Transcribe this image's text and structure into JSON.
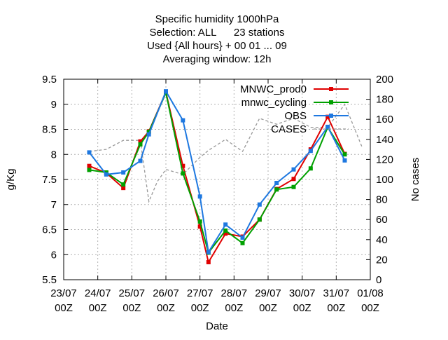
{
  "chart_data": {
    "type": "line",
    "title_lines": [
      "Specific humidity 1000hPa",
      "Selection: ALL      23 stations",
      "Used {All hours} + 00 01 ... 09",
      "Averaging window: 12h"
    ],
    "xlabel": "Date",
    "ylabel": "g/Kg",
    "y2label": "No cases",
    "x_ticks": [
      {
        "date": "2019-07-23 00:00",
        "line1": "23/07",
        "line2": "00Z"
      },
      {
        "date": "2019-07-24 00:00",
        "line1": "24/07",
        "line2": "00Z"
      },
      {
        "date": "2019-07-25 00:00",
        "line1": "25/07",
        "line2": "00Z"
      },
      {
        "date": "2019-07-26 00:00",
        "line1": "26/07",
        "line2": "00Z"
      },
      {
        "date": "2019-07-27 00:00",
        "line1": "27/07",
        "line2": "00Z"
      },
      {
        "date": "2019-07-28 00:00",
        "line1": "28/07",
        "line2": "00Z"
      },
      {
        "date": "2019-07-29 00:00",
        "line1": "29/07",
        "line2": "00Z"
      },
      {
        "date": "2019-07-30 00:00",
        "line1": "30/07",
        "line2": "00Z"
      },
      {
        "date": "2019-07-31 00:00",
        "line1": "31/07",
        "line2": "00Z"
      },
      {
        "date": "2019-08-01 00:00",
        "line1": "01/08",
        "line2": "00Z"
      }
    ],
    "xlim": [
      "2019-07-23 00:00",
      "2019-08-01 00:00"
    ],
    "ylim": [
      5.5,
      9.5
    ],
    "y_ticks": [
      "5.5",
      "6",
      "6.5",
      "7",
      "7.5",
      "8",
      "8.5",
      "9",
      "9.5"
    ],
    "y2lim": [
      0,
      200
    ],
    "y2_ticks": [
      "0",
      "20",
      "40",
      "60",
      "80",
      "100",
      "120",
      "140",
      "160",
      "180",
      "200"
    ],
    "grid": true,
    "legend_position": "top-right",
    "x": [
      "2019-07-23 18:00",
      "2019-07-24 06:00",
      "2019-07-24 18:00",
      "2019-07-25 06:00",
      "2019-07-25 12:00",
      "2019-07-26 00:00",
      "2019-07-26 12:00",
      "2019-07-27 00:00",
      "2019-07-27 06:00",
      "2019-07-27 18:00",
      "2019-07-28 06:00",
      "2019-07-28 18:00",
      "2019-07-29 06:00",
      "2019-07-29 18:00",
      "2019-07-30 06:00",
      "2019-07-30 18:00",
      "2019-07-31 06:00",
      "2019-07-31 18:00"
    ],
    "series": [
      {
        "name": "MNWC_prod0",
        "color": "#e00000",
        "axis": "y",
        "values": [
          7.77,
          7.63,
          7.33,
          8.26,
          8.46,
          9.24,
          7.77,
          6.56,
          5.85,
          6.42,
          6.36,
          6.7,
          7.31,
          7.51,
          8.1,
          8.75,
          8.01,
          null
        ]
      },
      {
        "name": "mnwc_cycling",
        "color": "#00a000",
        "axis": "y",
        "values": [
          7.69,
          7.64,
          7.4,
          8.2,
          8.45,
          9.23,
          7.62,
          6.66,
          6.04,
          6.48,
          6.23,
          6.7,
          7.3,
          7.35,
          7.72,
          8.54,
          8.0,
          null
        ]
      },
      {
        "name": "OBS",
        "color": "#1e78e0",
        "axis": "y",
        "values": [
          8.04,
          7.6,
          7.64,
          7.87,
          8.4,
          9.26,
          8.68,
          7.16,
          6.05,
          6.6,
          6.34,
          7.0,
          7.43,
          7.7,
          8.07,
          8.55,
          7.88,
          null
        ]
      }
    ],
    "cases": {
      "name": "CASES",
      "color": "#999999",
      "axis": "y2",
      "x": [
        "2019-07-23 18:00",
        "2019-07-24 06:00",
        "2019-07-24 18:00",
        "2019-07-25 06:00",
        "2019-07-25 12:00",
        "2019-07-25 18:00",
        "2019-07-26 00:00",
        "2019-07-26 12:00",
        "2019-07-27 00:00",
        "2019-07-27 06:00",
        "2019-07-27 18:00",
        "2019-07-28 06:00",
        "2019-07-28 18:00",
        "2019-07-29 06:00",
        "2019-07-29 18:00",
        "2019-07-30 06:00",
        "2019-07-30 18:00",
        "2019-07-31 06:00",
        "2019-07-31 18:00"
      ],
      "values": [
        128,
        130,
        139,
        139,
        78,
        98,
        110,
        105,
        122,
        129,
        140,
        128,
        161,
        155,
        161,
        152,
        152,
        175,
        133
      ]
    }
  }
}
